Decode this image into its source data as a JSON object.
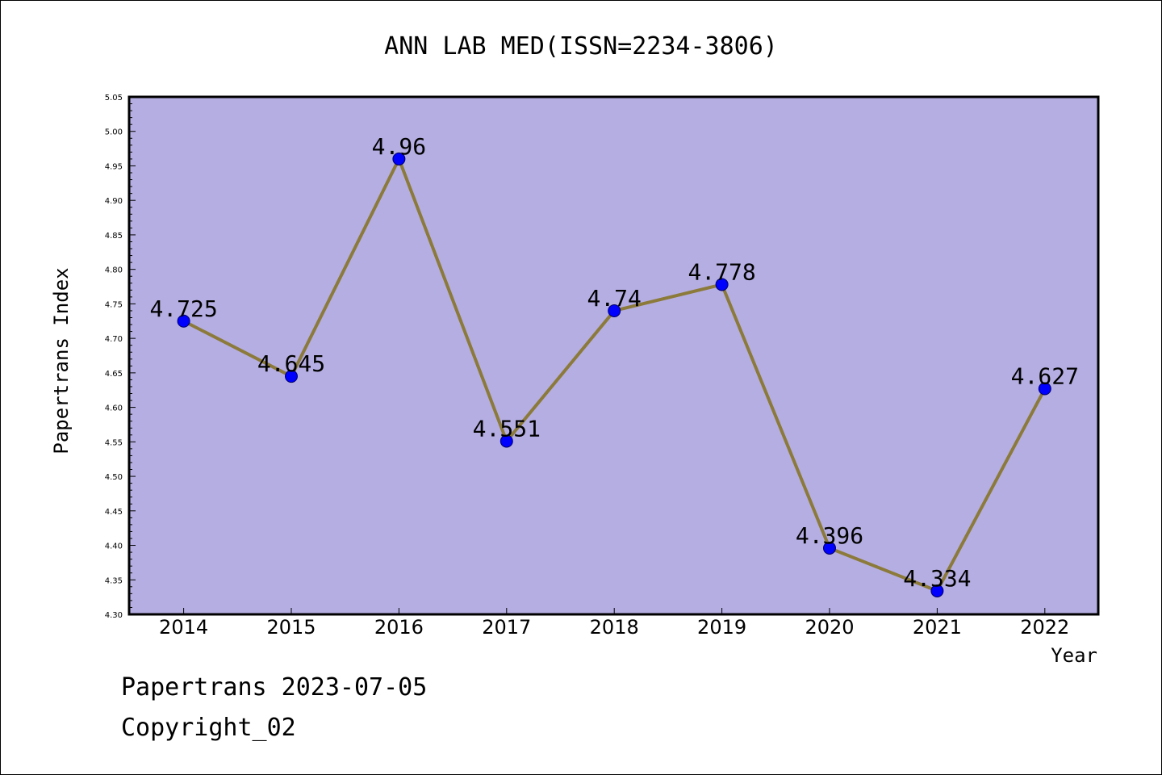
{
  "chart_data": {
    "type": "line",
    "title": "ANN LAB MED(ISSN=2234-3806)",
    "xlabel": "Year",
    "ylabel": "Papertrans Index",
    "categories": [
      "2014",
      "2015",
      "2016",
      "2017",
      "2018",
      "2019",
      "2020",
      "2021",
      "2022"
    ],
    "values": [
      4.725,
      4.645,
      4.96,
      4.551,
      4.74,
      4.778,
      4.396,
      4.334,
      4.627
    ],
    "data_labels": [
      "4.725",
      "4.645",
      "4.96",
      "4.551",
      "4.74",
      "4.778",
      "4.396",
      "4.334",
      "4.627"
    ],
    "ylim": [
      4.3,
      5.05
    ],
    "yticks": [
      "4.30",
      "4.35",
      "4.40",
      "4.45",
      "4.50",
      "4.55",
      "4.60",
      "4.65",
      "4.70",
      "4.75",
      "4.80",
      "4.85",
      "4.90",
      "4.95",
      "5.00",
      "5.05"
    ],
    "grid": false,
    "legend": "none",
    "colors": {
      "plot_background": "#b5aee2",
      "line": "#8b7a3a",
      "marker": "#0000ff",
      "marker_edge": "#000066"
    }
  },
  "footer": {
    "date_line": "Papertrans 2023-07-05",
    "copyright": "Copyright_02"
  }
}
